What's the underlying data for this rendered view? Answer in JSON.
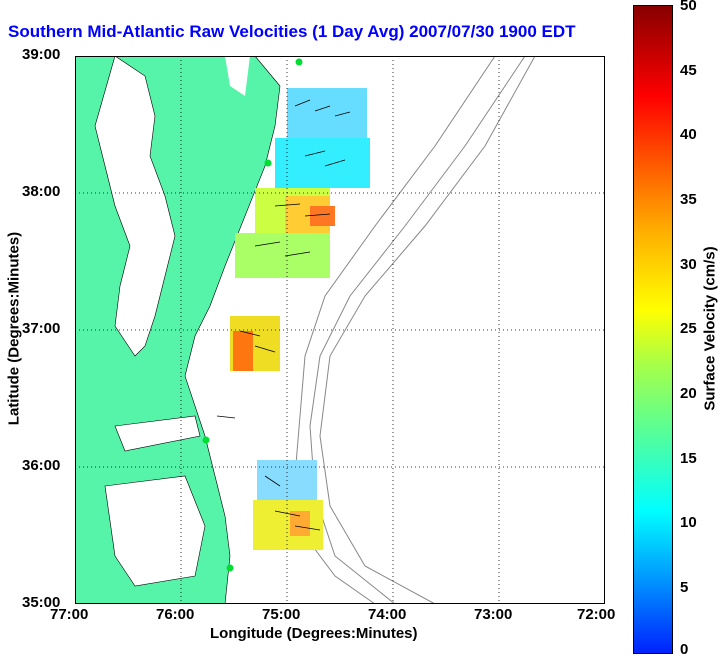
{
  "title": "Southern Mid-Atlantic Raw Velocities (1 Day Avg) 2007/07/30 1900 EDT",
  "axes": {
    "xlabel": "Longitude (Degrees:Minutes)",
    "ylabel": "Latitude (Degrees:Minutes)",
    "xticks": [
      "77:00",
      "76:00",
      "75:00",
      "74:00",
      "73:00",
      "72:00"
    ],
    "yticks": [
      "39:00",
      "38:00",
      "37:00",
      "36:00",
      "35:00"
    ]
  },
  "colorbar": {
    "title": "Surface Velocity (cm/s)",
    "ticks": [
      "50",
      "45",
      "40",
      "35",
      "30",
      "25",
      "20",
      "15",
      "10",
      "5",
      "0"
    ],
    "min": 0,
    "max": 50
  },
  "colors": {
    "land": "#55f4a8",
    "title": "#0000ff",
    "grid": "#000000"
  }
}
